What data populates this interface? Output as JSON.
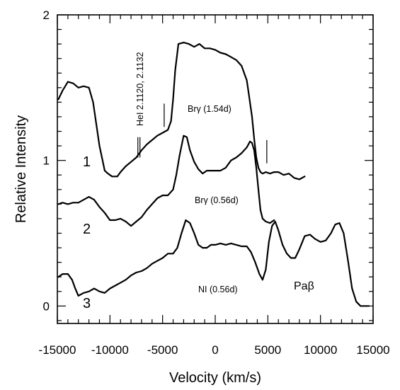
{
  "chart_data": {
    "type": "line",
    "title": "",
    "xlabel": "Velocity (km/s)",
    "ylabel": "Relative Intensity",
    "xlim": [
      -15000,
      15000
    ],
    "ylim": [
      -0.12,
      2.0
    ],
    "xticks": [
      -15000,
      -10000,
      -5000,
      0,
      5000,
      10000,
      15000
    ],
    "xtick_labels": [
      "-15000",
      "-10000",
      "-5000",
      "0",
      "5000",
      "10000",
      "15000"
    ],
    "yticks": [
      0,
      1,
      2
    ],
    "ytick_labels": [
      "0",
      "1",
      "2"
    ],
    "grid": false,
    "series": [
      {
        "name": "1",
        "x": [
          -14900,
          -14500,
          -14000,
          -13500,
          -13000,
          -12500,
          -12000,
          -11600,
          -11300,
          -11000,
          -10700,
          -10500,
          -10200,
          -9800,
          -9300,
          -9000,
          -8500,
          -8000,
          -7500,
          -7000,
          -6500,
          -6000,
          -5500,
          -5000,
          -4500,
          -4200,
          -4000,
          -3800,
          -3500,
          -3000,
          -2500,
          -2000,
          -1500,
          -1000,
          -500,
          0,
          500,
          1000,
          1500,
          2000,
          2500,
          3000,
          3200,
          3500,
          3700,
          3900,
          4100,
          4300,
          4500,
          4800,
          5200,
          5600,
          6000,
          6500,
          7000,
          7500,
          8000,
          8500
        ],
        "y": [
          1.42,
          1.48,
          1.54,
          1.53,
          1.5,
          1.51,
          1.5,
          1.4,
          1.25,
          1.1,
          1.0,
          0.93,
          0.91,
          0.89,
          0.89,
          0.92,
          0.96,
          0.99,
          1.02,
          1.07,
          1.11,
          1.14,
          1.17,
          1.19,
          1.21,
          1.27,
          1.42,
          1.62,
          1.8,
          1.81,
          1.8,
          1.78,
          1.8,
          1.77,
          1.77,
          1.76,
          1.74,
          1.73,
          1.71,
          1.69,
          1.65,
          1.55,
          1.45,
          1.3,
          1.15,
          1.02,
          0.95,
          0.92,
          0.91,
          0.92,
          0.91,
          0.92,
          0.92,
          0.9,
          0.91,
          0.88,
          0.87,
          0.89
        ]
      },
      {
        "name": "2",
        "x": [
          -14900,
          -14500,
          -14000,
          -13500,
          -13000,
          -12500,
          -12000,
          -11500,
          -11000,
          -10500,
          -10000,
          -9500,
          -9000,
          -8500,
          -8000,
          -7500,
          -7000,
          -6500,
          -6000,
          -5500,
          -5000,
          -4500,
          -4000,
          -3700,
          -3400,
          -3000,
          -2700,
          -2400,
          -2000,
          -1600,
          -1200,
          -800,
          -400,
          0,
          500,
          1000,
          1500,
          2000,
          2500,
          3000,
          3300,
          3500,
          3700,
          3900,
          4100,
          4300,
          4500,
          4800,
          5200,
          5600
        ],
        "y": [
          0.7,
          0.71,
          0.7,
          0.71,
          0.71,
          0.73,
          0.75,
          0.73,
          0.68,
          0.64,
          0.59,
          0.59,
          0.6,
          0.58,
          0.55,
          0.58,
          0.61,
          0.66,
          0.7,
          0.74,
          0.76,
          0.76,
          0.8,
          0.9,
          1.03,
          1.17,
          1.16,
          1.07,
          0.99,
          0.94,
          0.91,
          0.93,
          0.93,
          0.93,
          0.93,
          0.95,
          1.0,
          1.02,
          1.05,
          1.09,
          1.13,
          1.12,
          1.07,
          0.95,
          0.8,
          0.66,
          0.6,
          0.58,
          0.57,
          0.59
        ]
      },
      {
        "name": "3",
        "x": [
          -14900,
          -14500,
          -14000,
          -13600,
          -13300,
          -13000,
          -12500,
          -12000,
          -11500,
          -11000,
          -10500,
          -10000,
          -9500,
          -9000,
          -8500,
          -8000,
          -7500,
          -7000,
          -6500,
          -6000,
          -5500,
          -5000,
          -4500,
          -4000,
          -3600,
          -3200,
          -2800,
          -2400,
          -2000,
          -1600,
          -1200,
          -800,
          -400,
          0,
          500,
          1000,
          1500,
          2000,
          2500,
          3000,
          3400,
          3800,
          4200,
          4500,
          4800,
          5100,
          5400,
          5700,
          6000,
          6400,
          6800,
          7200,
          7600,
          8000,
          8500,
          9000,
          9500,
          10000,
          10500,
          11000,
          11400,
          11800,
          12200,
          12600,
          13000,
          13400,
          13800,
          14200,
          14600
        ],
        "y": [
          0.2,
          0.22,
          0.22,
          0.18,
          0.12,
          0.07,
          0.09,
          0.1,
          0.12,
          0.1,
          0.09,
          0.12,
          0.14,
          0.16,
          0.18,
          0.21,
          0.23,
          0.24,
          0.26,
          0.29,
          0.31,
          0.33,
          0.36,
          0.36,
          0.4,
          0.5,
          0.59,
          0.57,
          0.5,
          0.42,
          0.4,
          0.4,
          0.42,
          0.42,
          0.43,
          0.42,
          0.43,
          0.42,
          0.41,
          0.41,
          0.37,
          0.3,
          0.22,
          0.18,
          0.25,
          0.44,
          0.55,
          0.58,
          0.52,
          0.42,
          0.36,
          0.33,
          0.33,
          0.39,
          0.48,
          0.49,
          0.46,
          0.44,
          0.45,
          0.5,
          0.56,
          0.57,
          0.5,
          0.32,
          0.12,
          0.03,
          0.0,
          0.0,
          0.0
        ]
      }
    ],
    "annotations": {
      "hei": "HeI 2.1120, 2.1132",
      "brg1": "Brγ  (1.54d)",
      "brg2": "Brγ  (0.56d)",
      "ni": "NI (0.56d)",
      "pab": "Paβ",
      "label1": "1",
      "label2": "2",
      "label3": "3"
    }
  }
}
